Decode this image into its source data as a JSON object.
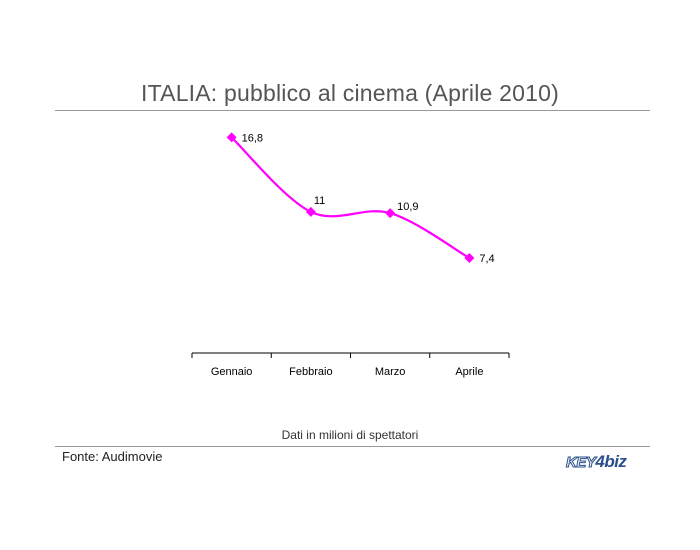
{
  "title": "ITALIA: pubblico al cinema (Aprile 2010)",
  "note": "Dati in milioni di spettatori",
  "source": "Fonte: Audimovie",
  "logo": {
    "left": "KEY",
    "mid": "4",
    "right": "biz"
  },
  "colors": {
    "series": "#ff00ff",
    "axis": "#000000",
    "rule": "#999999"
  },
  "chart_data": {
    "type": "line",
    "categories": [
      "Gennaio",
      "Febbraio",
      "Marzo",
      "Aprile"
    ],
    "series": [
      {
        "values": [
          16.8,
          11,
          10.9,
          7.4
        ],
        "labels": [
          "16,8",
          "11",
          "10,9",
          "7,4"
        ],
        "color": "#ff00ff",
        "marker": "diamond",
        "smooth": true
      }
    ],
    "title": "ITALIA: pubblico al cinema (Aprile 2010)",
    "xlabel": "",
    "ylabel": "",
    "ylim": [
      0,
      18
    ],
    "grid": false,
    "legend": "none"
  }
}
